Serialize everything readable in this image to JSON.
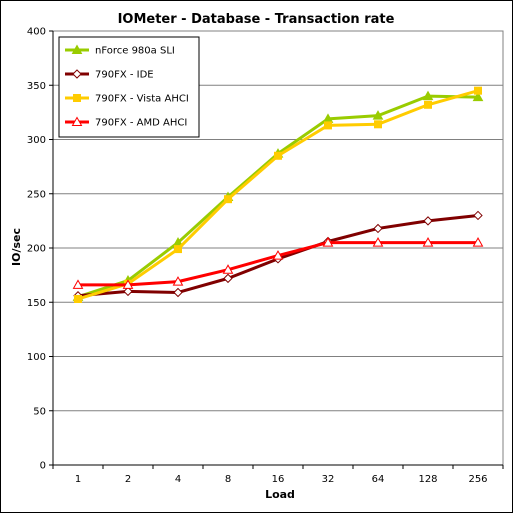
{
  "chart_data": {
    "type": "line",
    "title": "IOMeter - Database - Transaction rate",
    "xlabel": "Load",
    "ylabel": "IO/sec",
    "categories": [
      "1",
      "2",
      "4",
      "8",
      "16",
      "32",
      "64",
      "128",
      "256"
    ],
    "ylim": [
      0,
      400
    ],
    "yticks": [
      "0",
      "50",
      "100",
      "150",
      "200",
      "250",
      "300",
      "350",
      "400"
    ],
    "grid": "horizontal",
    "legend_position": "top-left",
    "series": [
      {
        "name": "nForce 980a SLI",
        "color": "#99cc00",
        "marker": "filled-triangle",
        "values": [
          155,
          170,
          205,
          247,
          287,
          319,
          322,
          340,
          339
        ]
      },
      {
        "name": "790FX - IDE",
        "color": "#800000",
        "marker": "open-diamond",
        "values": [
          156,
          160,
          159,
          172,
          190,
          206,
          218,
          225,
          230
        ]
      },
      {
        "name": "790FX - Vista AHCI",
        "color": "#ffcc00",
        "marker": "filled-square",
        "values": [
          153,
          167,
          199,
          245,
          285,
          313,
          314,
          332,
          345
        ]
      },
      {
        "name": "790FX - AMD AHCI",
        "color": "#ff0000",
        "marker": "open-triangle",
        "values": [
          166,
          166,
          169,
          180,
          193,
          205,
          205,
          205,
          205
        ]
      }
    ]
  }
}
